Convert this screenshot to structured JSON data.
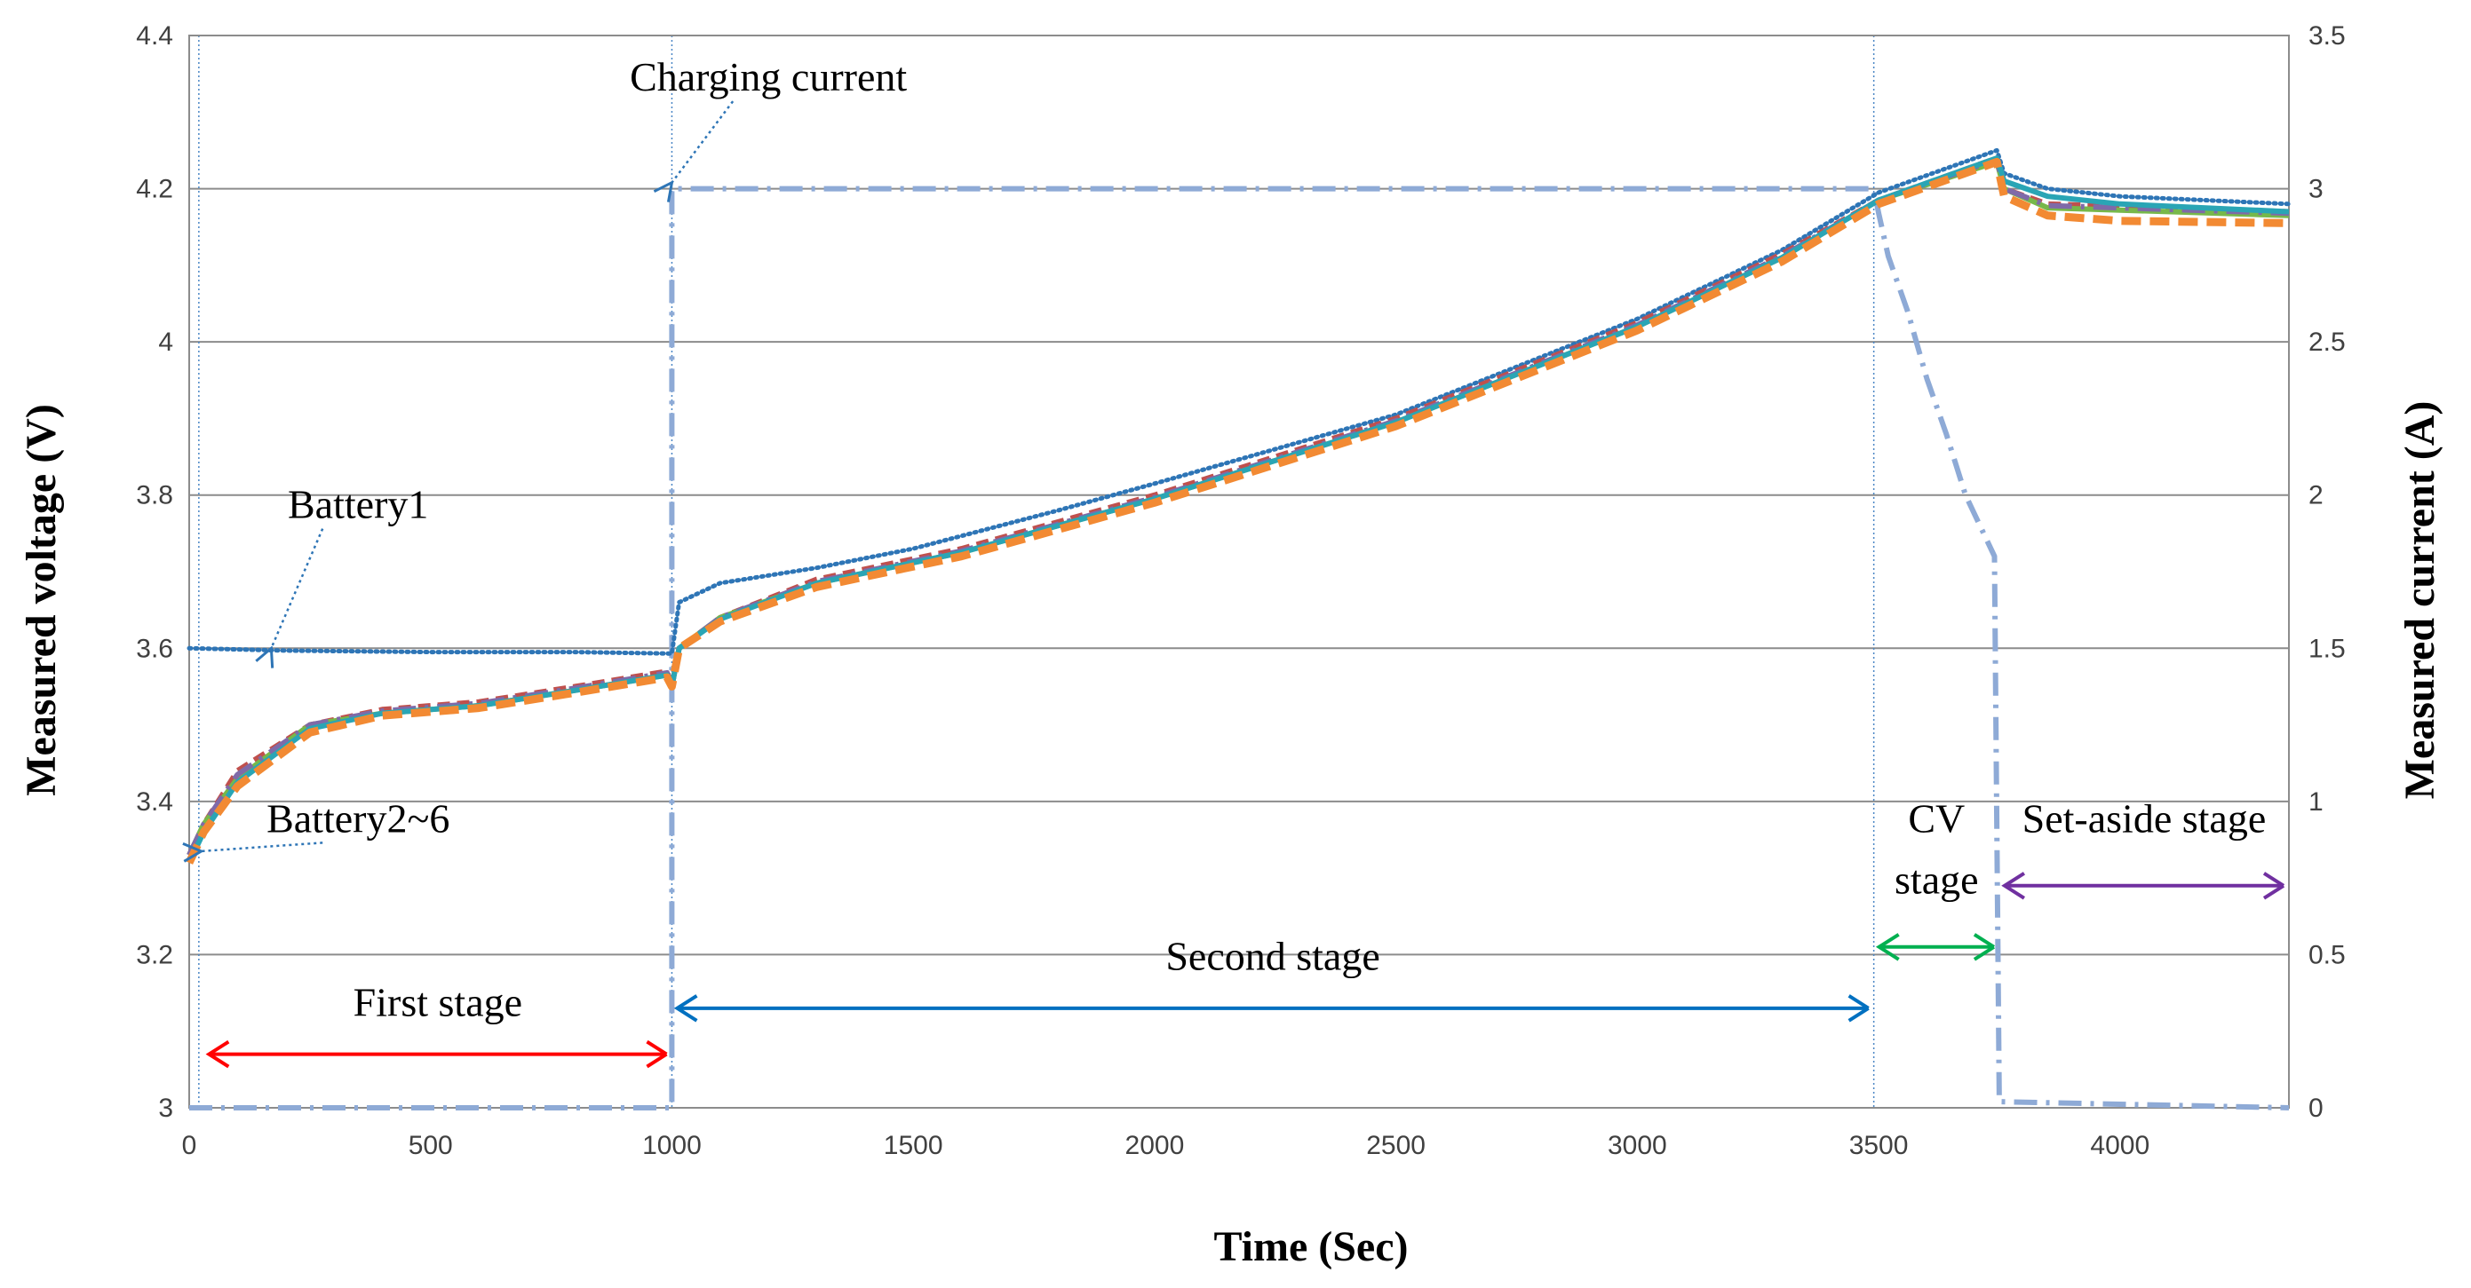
{
  "chart_data": {
    "type": "line",
    "xlabel": "Time (Sec)",
    "ylabel": "Measured voltage (V)",
    "y2label": "Measured current (A)",
    "xlim": [
      0,
      4350
    ],
    "ylim": [
      3.0,
      4.4
    ],
    "y2lim": [
      0,
      3.5
    ],
    "x_ticks": [
      0,
      500,
      1000,
      1500,
      2000,
      2500,
      3000,
      3500,
      4000
    ],
    "y_ticks": [
      "3",
      "3.2",
      "3.4",
      "3.6",
      "3.8",
      "4",
      "4.2",
      "4.4"
    ],
    "y2_ticks": [
      "0",
      "0.5",
      "1",
      "1.5",
      "2",
      "2.5",
      "3",
      "3.5"
    ],
    "grid": true,
    "series": [
      {
        "name": "Charging current",
        "axis": "right",
        "style": "dash-dot",
        "color": "#8eaad6",
        "points": [
          [
            0,
            0
          ],
          [
            990,
            0
          ],
          [
            1000,
            0
          ],
          [
            1000,
            3.0
          ],
          [
            1500,
            3.0
          ],
          [
            2000,
            3.0
          ],
          [
            2500,
            3.0
          ],
          [
            3000,
            3.0
          ],
          [
            3490,
            3.0
          ],
          [
            3500,
            2.92
          ],
          [
            3520,
            2.78
          ],
          [
            3560,
            2.6
          ],
          [
            3600,
            2.38
          ],
          [
            3640,
            2.2
          ],
          [
            3680,
            2.0
          ],
          [
            3710,
            1.9
          ],
          [
            3740,
            1.8
          ],
          [
            3745,
            0.9
          ],
          [
            3750,
            0.02
          ],
          [
            4350,
            0
          ]
        ]
      },
      {
        "name": "Battery1",
        "axis": "left",
        "style": "dotted",
        "color": "#2e75b6",
        "points": [
          [
            0,
            3.6
          ],
          [
            200,
            3.597
          ],
          [
            500,
            3.595
          ],
          [
            800,
            3.595
          ],
          [
            1000,
            3.593
          ],
          [
            1015,
            3.66
          ],
          [
            1100,
            3.685
          ],
          [
            1300,
            3.705
          ],
          [
            1500,
            3.73
          ],
          [
            1800,
            3.78
          ],
          [
            2000,
            3.815
          ],
          [
            2500,
            3.905
          ],
          [
            3000,
            4.03
          ],
          [
            3300,
            4.12
          ],
          [
            3500,
            4.195
          ],
          [
            3745,
            4.25
          ],
          [
            3760,
            4.22
          ],
          [
            3850,
            4.2
          ],
          [
            4000,
            4.19
          ],
          [
            4350,
            4.18
          ]
        ]
      },
      {
        "name": "Battery2",
        "axis": "left",
        "style": "dashed",
        "color": "#c0504d",
        "points": [
          [
            0,
            3.33
          ],
          [
            30,
            3.37
          ],
          [
            100,
            3.44
          ],
          [
            250,
            3.5
          ],
          [
            400,
            3.52
          ],
          [
            600,
            3.53
          ],
          [
            800,
            3.55
          ],
          [
            990,
            3.57
          ],
          [
            1000,
            3.55
          ],
          [
            1015,
            3.6
          ],
          [
            1100,
            3.64
          ],
          [
            1300,
            3.69
          ],
          [
            1600,
            3.73
          ],
          [
            2000,
            3.8
          ],
          [
            2500,
            3.9
          ],
          [
            3000,
            4.025
          ],
          [
            3300,
            4.115
          ],
          [
            3500,
            4.185
          ],
          [
            3745,
            4.24
          ],
          [
            3760,
            4.2
          ],
          [
            3850,
            4.18
          ],
          [
            4350,
            4.17
          ]
        ]
      },
      {
        "name": "Battery3",
        "axis": "left",
        "style": "solid",
        "color": "#77b84a",
        "points": [
          [
            0,
            3.33
          ],
          [
            30,
            3.37
          ],
          [
            100,
            3.43
          ],
          [
            250,
            3.5
          ],
          [
            400,
            3.515
          ],
          [
            600,
            3.525
          ],
          [
            800,
            3.545
          ],
          [
            990,
            3.565
          ],
          [
            1000,
            3.55
          ],
          [
            1015,
            3.6
          ],
          [
            1100,
            3.64
          ],
          [
            1300,
            3.685
          ],
          [
            1600,
            3.725
          ],
          [
            2000,
            3.795
          ],
          [
            2500,
            3.895
          ],
          [
            3000,
            4.02
          ],
          [
            3300,
            4.11
          ],
          [
            3500,
            4.185
          ],
          [
            3745,
            4.235
          ],
          [
            3760,
            4.2
          ],
          [
            3850,
            4.175
          ],
          [
            4350,
            4.165
          ]
        ]
      },
      {
        "name": "Battery4",
        "axis": "left",
        "style": "dash-dot",
        "color": "#7f6aa8",
        "points": [
          [
            0,
            3.33
          ],
          [
            30,
            3.37
          ],
          [
            100,
            3.435
          ],
          [
            250,
            3.5
          ],
          [
            400,
            3.518
          ],
          [
            600,
            3.528
          ],
          [
            800,
            3.548
          ],
          [
            990,
            3.568
          ],
          [
            1000,
            3.55
          ],
          [
            1015,
            3.6
          ],
          [
            1100,
            3.64
          ],
          [
            1300,
            3.687
          ],
          [
            1600,
            3.727
          ],
          [
            2000,
            3.797
          ],
          [
            2500,
            3.897
          ],
          [
            3000,
            4.022
          ],
          [
            3300,
            4.112
          ],
          [
            3500,
            4.185
          ],
          [
            3745,
            4.238
          ],
          [
            3760,
            4.2
          ],
          [
            3850,
            4.178
          ],
          [
            4350,
            4.168
          ]
        ]
      },
      {
        "name": "Battery5",
        "axis": "left",
        "style": "solid",
        "color": "#2aa5b5",
        "points": [
          [
            0,
            3.32
          ],
          [
            30,
            3.36
          ],
          [
            100,
            3.425
          ],
          [
            250,
            3.495
          ],
          [
            400,
            3.515
          ],
          [
            600,
            3.525
          ],
          [
            800,
            3.545
          ],
          [
            990,
            3.565
          ],
          [
            1000,
            3.55
          ],
          [
            1015,
            3.6
          ],
          [
            1100,
            3.638
          ],
          [
            1300,
            3.685
          ],
          [
            1600,
            3.725
          ],
          [
            2000,
            3.795
          ],
          [
            2500,
            3.895
          ],
          [
            3000,
            4.02
          ],
          [
            3300,
            4.11
          ],
          [
            3500,
            4.185
          ],
          [
            3745,
            4.24
          ],
          [
            3760,
            4.21
          ],
          [
            3850,
            4.19
          ],
          [
            4000,
            4.18
          ],
          [
            4350,
            4.17
          ]
        ]
      },
      {
        "name": "Battery6",
        "axis": "left",
        "style": "dashed-thick",
        "color": "#f28a33",
        "points": [
          [
            0,
            3.32
          ],
          [
            30,
            3.36
          ],
          [
            100,
            3.42
          ],
          [
            250,
            3.49
          ],
          [
            400,
            3.512
          ],
          [
            600,
            3.522
          ],
          [
            800,
            3.542
          ],
          [
            990,
            3.562
          ],
          [
            1000,
            3.55
          ],
          [
            1015,
            3.6
          ],
          [
            1100,
            3.635
          ],
          [
            1300,
            3.68
          ],
          [
            1600,
            3.72
          ],
          [
            2000,
            3.79
          ],
          [
            2500,
            3.89
          ],
          [
            3000,
            4.015
          ],
          [
            3300,
            4.105
          ],
          [
            3500,
            4.18
          ],
          [
            3745,
            4.235
          ],
          [
            3760,
            4.19
          ],
          [
            3850,
            4.165
          ],
          [
            4000,
            4.158
          ],
          [
            4350,
            4.155
          ]
        ]
      }
    ],
    "stage_markers": [
      20,
      1000,
      3490
    ],
    "annotations": [
      {
        "text": "Charging current",
        "axis": "right",
        "text_at": [
          1200,
          3.32
        ],
        "arrow_to": [
          1000,
          3.02
        ]
      },
      {
        "text": "Battery1",
        "axis": "left",
        "text_at": [
          350,
          3.77
        ],
        "arrow_to": [
          170,
          3.6
        ]
      },
      {
        "text": "Battery2~6",
        "axis": "left",
        "text_at": [
          350,
          3.36
        ],
        "arrow_to": [
          25,
          3.335
        ]
      }
    ],
    "stages": [
      {
        "label": "First stage",
        "from": 30,
        "to": 1000,
        "y": 3.07,
        "color": "#ff0000",
        "label_y": 3.12
      },
      {
        "label": "Second stage",
        "from": 1000,
        "to": 3490,
        "y": 3.13,
        "color": "#0070c0",
        "label_y": 3.18
      },
      {
        "label": "CV",
        "label2": "stage",
        "from": 3490,
        "to": 3750,
        "y": 3.21,
        "color": "#00b050",
        "label_y": 3.36,
        "label2_y": 3.28
      },
      {
        "label": "Set-aside stage",
        "from": 3750,
        "to": 4350,
        "y": 3.29,
        "color": "#7030a0",
        "label_y": 3.36
      }
    ]
  }
}
